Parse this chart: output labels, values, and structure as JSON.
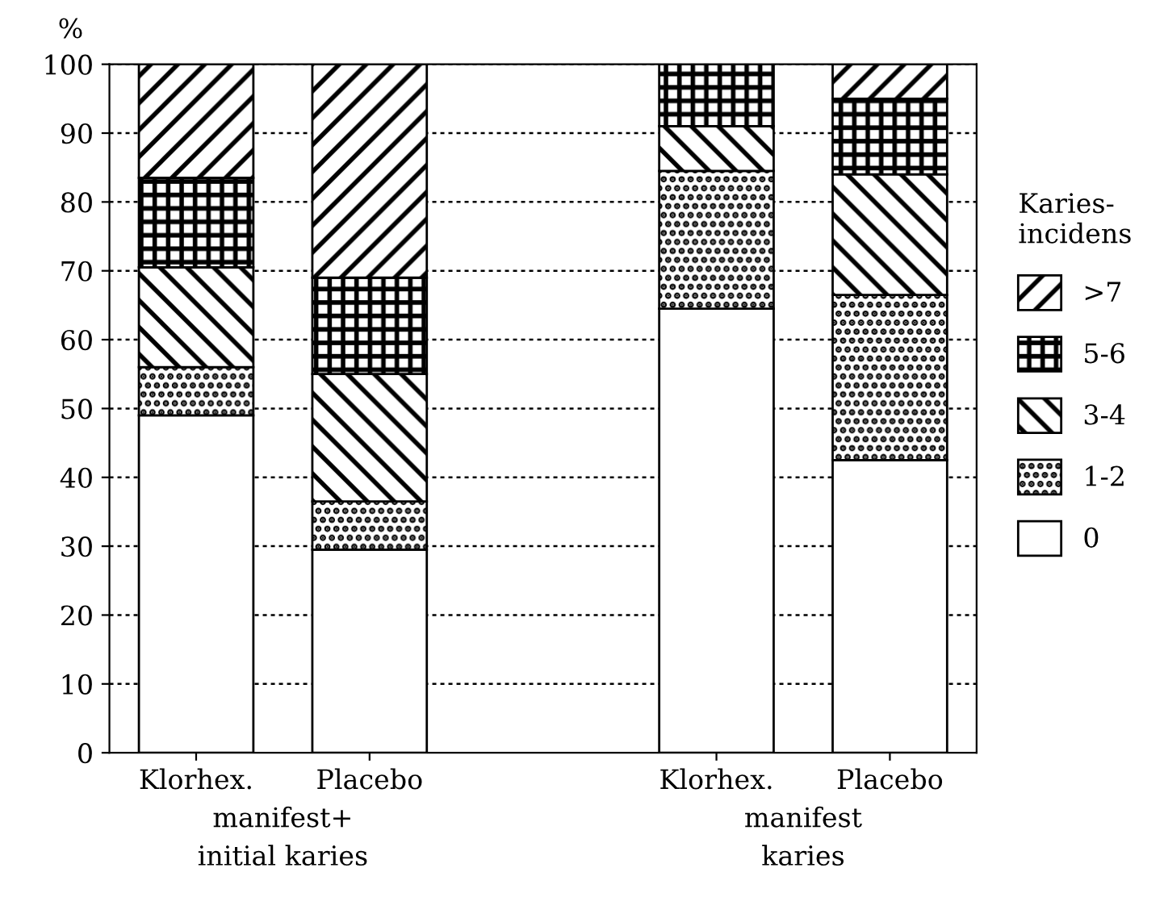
{
  "chart_data": {
    "type": "bar",
    "stacked": true,
    "ylabel": "%",
    "legend_title": "Karies-\nincidens",
    "categories": [
      "Klorhex.",
      "Placebo",
      null,
      "Klorhex.",
      "Placebo"
    ],
    "series": [
      {
        "name": "0",
        "color": "#ffffff",
        "values": [
          49,
          29.5,
          null,
          64.5,
          42.5
        ]
      },
      {
        "name": "1-2",
        "color": "#000000",
        "values": [
          7,
          7,
          null,
          20,
          24
        ]
      },
      {
        "name": "3-4",
        "color": "#000000",
        "values": [
          14.5,
          18.5,
          null,
          6.5,
          17.5
        ]
      },
      {
        "name": "5-6",
        "color": "#000000",
        "values": [
          13,
          14,
          null,
          9,
          11
        ]
      },
      {
        "name": ">7",
        "color": "#000000",
        "values": [
          16.5,
          31,
          null,
          null,
          5
        ]
      }
    ],
    "ylim": [
      0,
      100
    ],
    "yticks": [
      0,
      10,
      20,
      30,
      40,
      50,
      60,
      70,
      80,
      90,
      100
    ],
    "grid": "y",
    "legend": "right",
    "annotations": [
      "manifest+\ninitial karies",
      "manifest\nkaries"
    ]
  }
}
